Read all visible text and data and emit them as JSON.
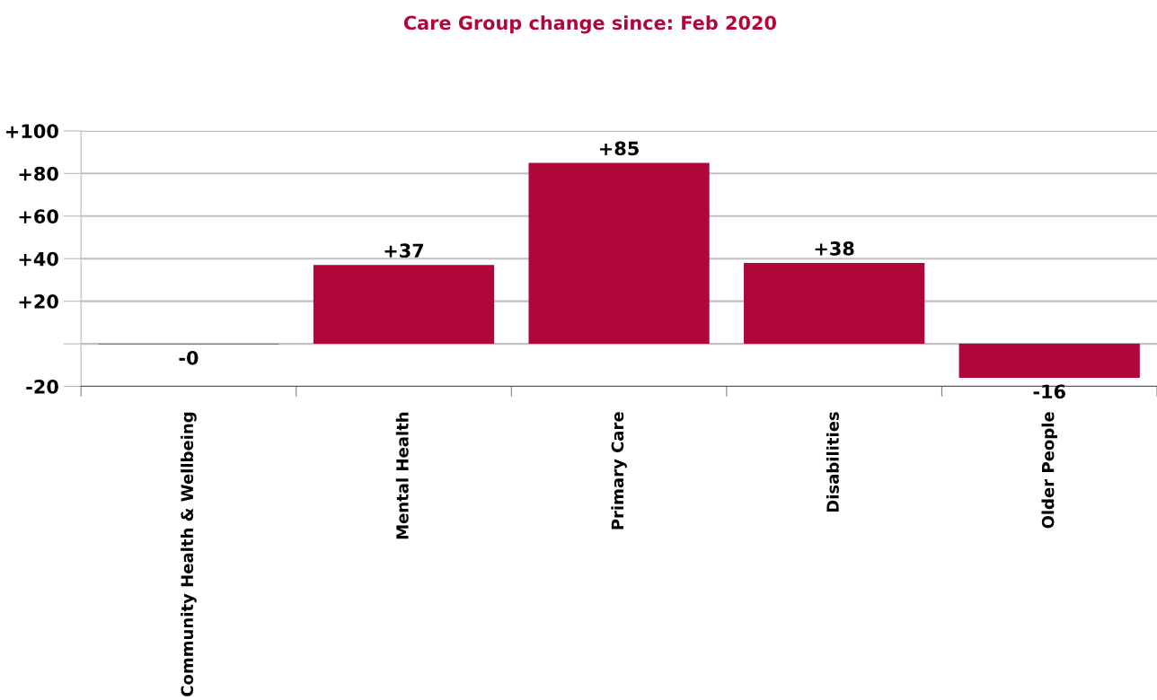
{
  "chart_data": {
    "type": "bar",
    "title": "Care Group change since: Feb 2020",
    "categories": [
      "Community Health & Wellbeing",
      "Mental Health",
      "Primary Care",
      "Disabilities",
      "Older People"
    ],
    "values": [
      -0.2,
      37,
      85,
      38,
      -16
    ],
    "value_labels": [
      "-0",
      "+37",
      "+85",
      "+38",
      "-16"
    ],
    "color": "#b0073a",
    "ylim": [
      -20,
      100
    ],
    "yticks": [
      {
        "value": -20,
        "label": "-20"
      },
      {
        "value": 0,
        "label": null
      },
      {
        "value": 20,
        "label": "+20"
      },
      {
        "value": 40,
        "label": "+40"
      },
      {
        "value": 60,
        "label": "+60"
      },
      {
        "value": 80,
        "label": "+80"
      },
      {
        "value": 100,
        "label": "+100"
      }
    ],
    "grid": "y"
  }
}
